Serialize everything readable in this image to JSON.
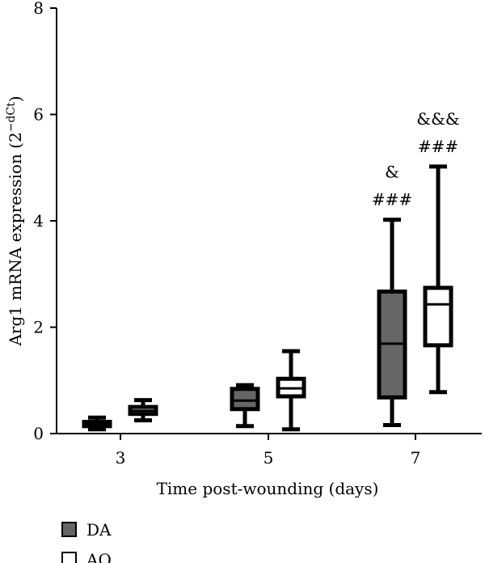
{
  "chart_data": {
    "type": "box",
    "ylabel": "Arg1 mRNA expression (2",
    "ylabel_sup": "−dCt",
    "ylabel_close": ")",
    "xlabel": "Time post-wounding (days)",
    "categories": [
      "3",
      "5",
      "7"
    ],
    "ylim": [
      0,
      8
    ],
    "yticks": [
      0,
      2,
      4,
      6,
      8
    ],
    "grid": false,
    "legend_position": "bottom-left",
    "series": [
      {
        "name": "DA",
        "color": "#666666",
        "boxes": [
          {
            "category": "3",
            "min": 0.08,
            "q1": 0.14,
            "median": 0.19,
            "q3": 0.22,
            "max": 0.3
          },
          {
            "category": "5",
            "min": 0.14,
            "q1": 0.46,
            "median": 0.62,
            "q3": 0.84,
            "max": 0.91
          },
          {
            "category": "7",
            "min": 0.16,
            "q1": 0.68,
            "median": 1.69,
            "q3": 2.67,
            "max": 4.02
          }
        ]
      },
      {
        "name": "AO",
        "color": "#ffffff",
        "boxes": [
          {
            "category": "3",
            "min": 0.25,
            "q1": 0.37,
            "median": 0.43,
            "q3": 0.5,
            "max": 0.63
          },
          {
            "category": "5",
            "min": 0.08,
            "q1": 0.7,
            "median": 0.85,
            "q3": 1.03,
            "max": 1.55
          },
          {
            "category": "7",
            "min": 0.78,
            "q1": 1.66,
            "median": 2.43,
            "q3": 2.74,
            "max": 5.02
          }
        ]
      }
    ],
    "annotations": [
      {
        "series": "DA",
        "category": "7",
        "lines": [
          "&",
          "###"
        ]
      },
      {
        "series": "AO",
        "category": "7",
        "lines": [
          "&&&",
          "###"
        ]
      }
    ]
  }
}
